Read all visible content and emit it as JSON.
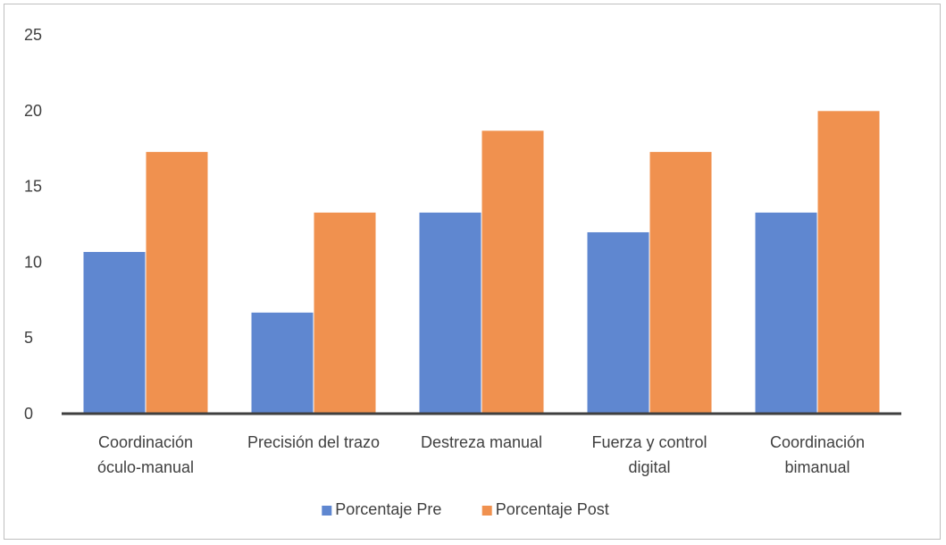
{
  "chart_data": {
    "type": "bar",
    "title": "",
    "xlabel": "",
    "ylabel": "",
    "categories": [
      [
        "Coordinación",
        "óculo-manual"
      ],
      [
        "Precisión del trazo"
      ],
      [
        "Destreza manual"
      ],
      [
        "Fuerza y control",
        "digital"
      ],
      [
        "Coordinación",
        "bimanual"
      ]
    ],
    "series": [
      {
        "name": "Porcentaje Pre",
        "color": "#5f87d0",
        "values": [
          10.7,
          6.7,
          13.3,
          12.0,
          13.3
        ]
      },
      {
        "name": "Porcentaje Post",
        "color": "#f0914f",
        "values": [
          17.3,
          13.3,
          18.7,
          17.3,
          20.0
        ]
      }
    ],
    "ylim": [
      0,
      25
    ],
    "yticks": [
      0,
      5,
      10,
      15,
      20,
      25
    ],
    "grid": false,
    "legend": "bottom-center"
  }
}
